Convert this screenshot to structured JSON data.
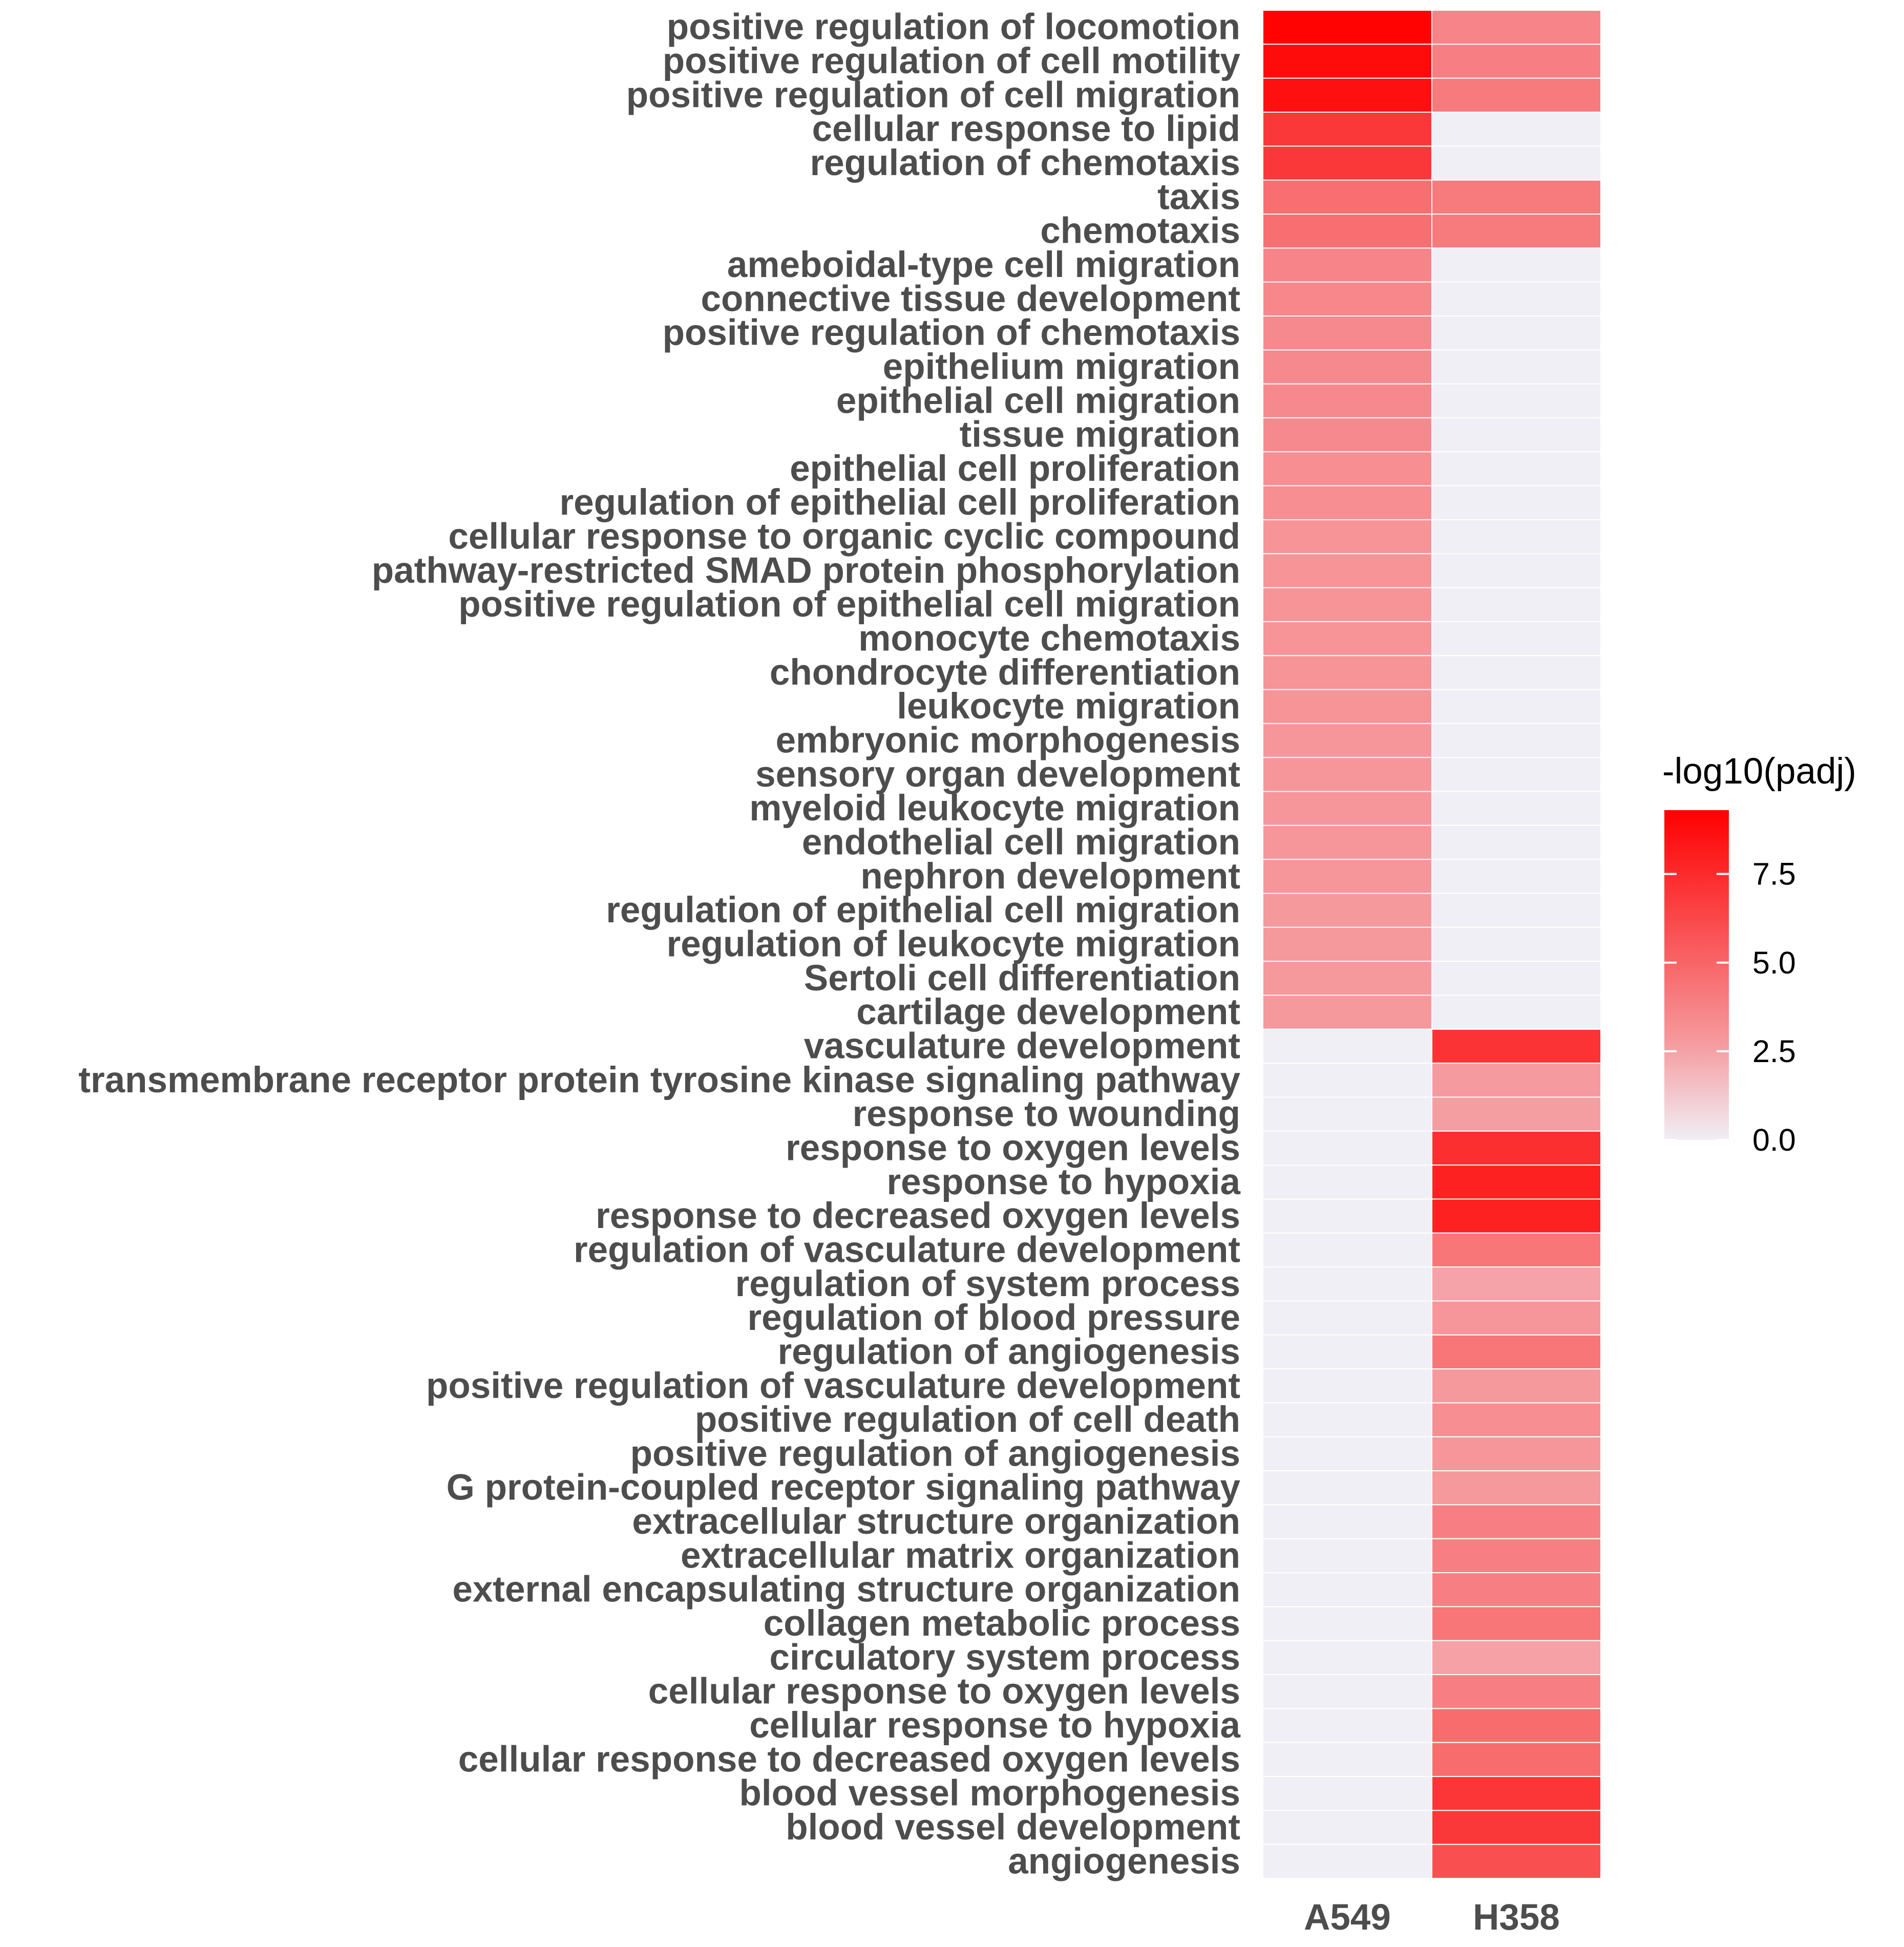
{
  "chart_data": {
    "type": "heatmap",
    "title": "",
    "xlabel": "",
    "ylabel": "",
    "columns": [
      "A549",
      "H358"
    ],
    "rows": [
      "positive regulation of locomotion",
      "positive regulation of cell motility",
      "positive regulation of cell migration",
      "cellular response to lipid",
      "regulation of chemotaxis",
      "taxis",
      "chemotaxis",
      "ameboidal-type cell migration",
      "connective tissue development",
      "positive regulation of chemotaxis",
      "epithelium migration",
      "epithelial cell migration",
      "tissue migration",
      "epithelial cell proliferation",
      "regulation of epithelial cell proliferation",
      "cellular response to organic cyclic compound",
      "pathway-restricted SMAD protein phosphorylation",
      "positive regulation of epithelial cell migration",
      "monocyte chemotaxis",
      "chondrocyte differentiation",
      "leukocyte migration",
      "embryonic morphogenesis",
      "sensory organ development",
      "myeloid leukocyte migration",
      "endothelial cell migration",
      "nephron development",
      "regulation of epithelial cell migration",
      "regulation of leukocyte migration",
      "Sertoli cell differentiation",
      "cartilage development",
      "vasculature development",
      "transmembrane receptor protein tyrosine kinase signaling pathway",
      "response to wounding",
      "response to oxygen levels",
      "response to hypoxia",
      "response to decreased oxygen levels",
      "regulation of vasculature development",
      "regulation of system process",
      "regulation of blood pressure",
      "regulation of angiogenesis",
      "positive regulation of vasculature development",
      "positive regulation of cell death",
      "positive regulation of angiogenesis",
      "G protein-coupled receptor signaling pathway",
      "extracellular structure organization",
      "extracellular matrix organization",
      "external encapsulating structure organization",
      "collagen metabolic process",
      "circulatory system process",
      "cellular response to oxygen levels",
      "cellular response to hypoxia",
      "cellular response to decreased oxygen levels",
      "blood vessel morphogenesis",
      "blood vessel development",
      "angiogenesis"
    ],
    "values": [
      [
        9.2,
        3.6
      ],
      [
        8.8,
        3.8
      ],
      [
        8.6,
        4.0
      ],
      [
        6.8,
        0.0
      ],
      [
        6.8,
        0.0
      ],
      [
        4.5,
        4.0
      ],
      [
        4.5,
        4.0
      ],
      [
        3.6,
        0.0
      ],
      [
        3.5,
        0.0
      ],
      [
        3.4,
        0.0
      ],
      [
        3.4,
        0.0
      ],
      [
        3.4,
        0.0
      ],
      [
        3.4,
        0.0
      ],
      [
        3.2,
        0.0
      ],
      [
        3.2,
        0.0
      ],
      [
        3.0,
        0.0
      ],
      [
        3.0,
        0.0
      ],
      [
        3.0,
        0.0
      ],
      [
        3.0,
        0.0
      ],
      [
        3.0,
        0.0
      ],
      [
        3.0,
        0.0
      ],
      [
        2.9,
        0.0
      ],
      [
        2.9,
        0.0
      ],
      [
        2.9,
        0.0
      ],
      [
        2.9,
        0.0
      ],
      [
        2.9,
        0.0
      ],
      [
        2.8,
        0.0
      ],
      [
        2.8,
        0.0
      ],
      [
        2.8,
        0.0
      ],
      [
        2.8,
        0.0
      ],
      [
        0.0,
        7.0
      ],
      [
        0.0,
        2.7
      ],
      [
        0.0,
        2.6
      ],
      [
        0.0,
        7.2
      ],
      [
        0.0,
        7.8
      ],
      [
        0.0,
        7.8
      ],
      [
        0.0,
        4.2
      ],
      [
        0.0,
        2.4
      ],
      [
        0.0,
        2.9
      ],
      [
        0.0,
        4.2
      ],
      [
        0.0,
        2.8
      ],
      [
        0.0,
        3.2
      ],
      [
        0.0,
        2.9
      ],
      [
        0.0,
        2.8
      ],
      [
        0.0,
        3.8
      ],
      [
        0.0,
        3.8
      ],
      [
        0.0,
        3.8
      ],
      [
        0.0,
        4.2
      ],
      [
        0.0,
        2.5
      ],
      [
        0.0,
        3.8
      ],
      [
        0.0,
        4.6
      ],
      [
        0.0,
        4.6
      ],
      [
        0.0,
        6.9
      ],
      [
        0.0,
        6.8
      ],
      [
        0.0,
        5.8
      ]
    ],
    "legend": {
      "title": "-log10(padj)",
      "ticks": [
        0.0,
        2.5,
        5.0,
        7.5
      ],
      "tick_labels": [
        "0.0",
        "2.5",
        "5.0",
        "7.5"
      ],
      "range": [
        0,
        9.3
      ],
      "low_color": "#f0eff5",
      "high_color": "#ff0000",
      "placement": "right"
    },
    "grid": false
  }
}
